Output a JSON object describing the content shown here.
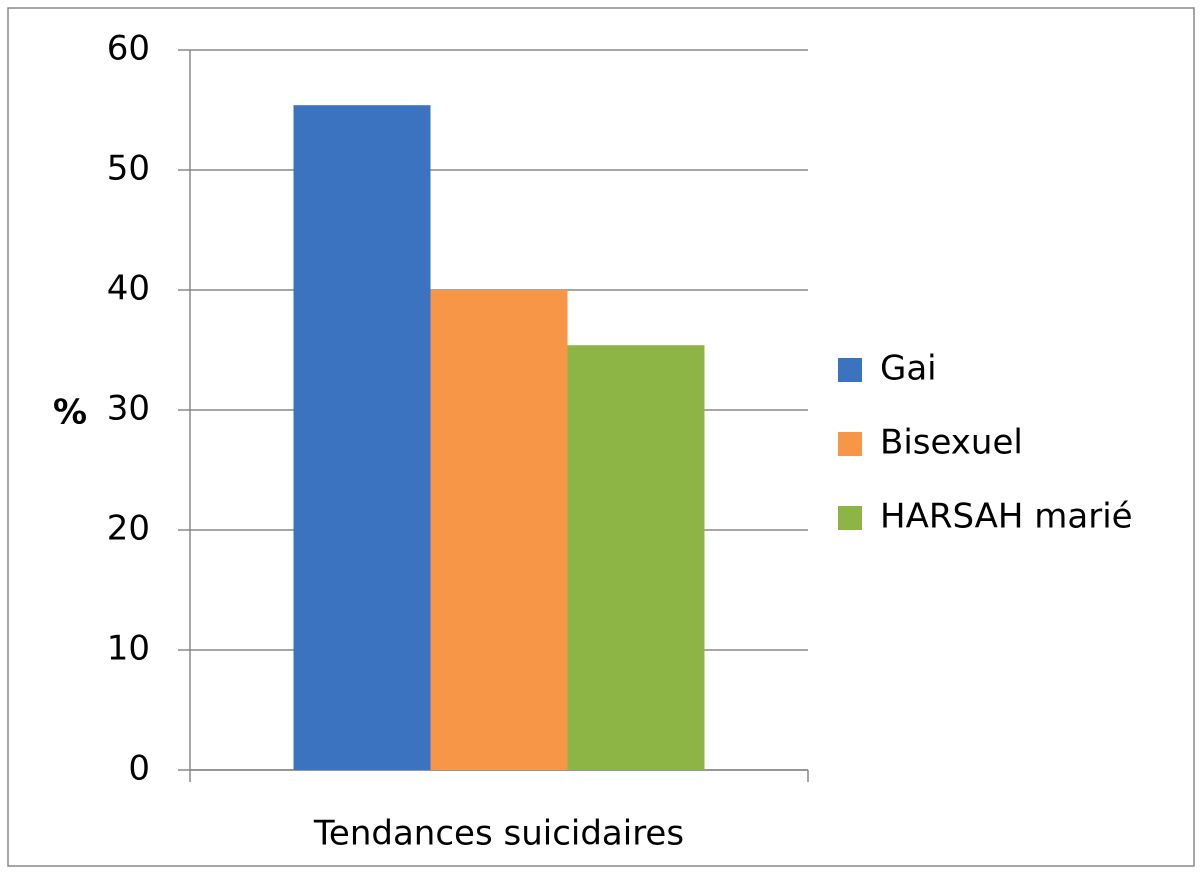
{
  "chart_data": {
    "type": "bar",
    "categories": [
      "Tendances suicidaires"
    ],
    "y_label": "%",
    "series": [
      {
        "name": "Gai",
        "color": "#3b73c0",
        "values": [
          55.4
        ]
      },
      {
        "name": "Bisexuel",
        "color": "#f79646",
        "values": [
          40
        ]
      },
      {
        "name": "HARSAH marié",
        "color": "#8db545",
        "values": [
          35.4
        ]
      }
    ],
    "ylim": [
      0,
      60
    ],
    "yticks": [
      0,
      10,
      20,
      30,
      40,
      50,
      60
    ],
    "grid": true,
    "legend": "right"
  }
}
